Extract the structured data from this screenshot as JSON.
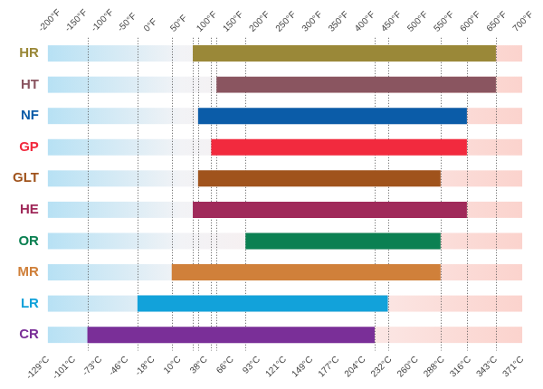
{
  "chart_data": {
    "type": "bar",
    "orientation": "horizontal",
    "categories": [
      "HR",
      "HT",
      "NF",
      "GP",
      "GLT",
      "HE",
      "OR",
      "MR",
      "LR",
      "CR"
    ],
    "values": [
      [
        75,
        650
      ],
      [
        120,
        650
      ],
      [
        85,
        595
      ],
      [
        110,
        595
      ],
      [
        85,
        545
      ],
      [
        75,
        595
      ],
      [
        175,
        545
      ],
      [
        35,
        545
      ],
      [
        -30,
        445
      ],
      [
        -125,
        420
      ]
    ],
    "colors": [
      "#9a8838",
      "#8a5560",
      "#0b5ca8",
      "#f22a3e",
      "#a0531c",
      "#a02a5a",
      "#0b8052",
      "#d0803a",
      "#12a2da",
      "#7a2f98"
    ],
    "xlim": [
      -200,
      700
    ],
    "xticks": [
      {
        "value": -200,
        "label": "-200°F"
      },
      {
        "value": -150,
        "label": "-150°F"
      },
      {
        "value": -100,
        "label": "-100°F"
      },
      {
        "value": -50,
        "label": "-50°F"
      },
      {
        "value": 0,
        "label": "0°F"
      },
      {
        "value": 50,
        "label": "50°F"
      },
      {
        "value": 100,
        "label": "100°F"
      },
      {
        "value": 150,
        "label": "150°F"
      },
      {
        "value": 200,
        "label": "200°F"
      },
      {
        "value": 250,
        "label": "250°F"
      },
      {
        "value": 300,
        "label": "300°F"
      },
      {
        "value": 350,
        "label": "350°F"
      },
      {
        "value": 400,
        "label": "400°F"
      },
      {
        "value": 450,
        "label": "450°F"
      },
      {
        "value": 500,
        "label": "500°F"
      },
      {
        "value": 550,
        "label": "550°F"
      },
      {
        "value": 600,
        "label": "600°F"
      },
      {
        "value": 650,
        "label": "650°F"
      },
      {
        "value": 700,
        "label": "700°F"
      }
    ],
    "x2lim": [
      -128.89,
      371.11
    ],
    "x2ticks": [
      {
        "value": -128.89,
        "label": "-129°C"
      },
      {
        "value": -101.11,
        "label": "-101°C"
      },
      {
        "value": -73.33,
        "label": "-73°C"
      },
      {
        "value": -45.56,
        "label": "-46°C"
      },
      {
        "value": -17.78,
        "label": "-18°C"
      },
      {
        "value": 10,
        "label": "10°C"
      },
      {
        "value": 37.78,
        "label": "38°C"
      },
      {
        "value": 65.56,
        "label": "66°C"
      },
      {
        "value": 93.33,
        "label": "93°C"
      },
      {
        "value": 121.11,
        "label": "121°C"
      },
      {
        "value": 148.89,
        "label": "149°C"
      },
      {
        "value": 176.67,
        "label": "177°C"
      },
      {
        "value": 204.44,
        "label": "204°C"
      },
      {
        "value": 232.22,
        "label": "232°C"
      },
      {
        "value": 260,
        "label": "260°C"
      },
      {
        "value": 287.78,
        "label": "288°C"
      },
      {
        "value": 315.56,
        "label": "316°C"
      },
      {
        "value": 343.33,
        "label": "343°C"
      },
      {
        "value": 371.11,
        "label": "371°C"
      }
    ],
    "grid": false
  }
}
